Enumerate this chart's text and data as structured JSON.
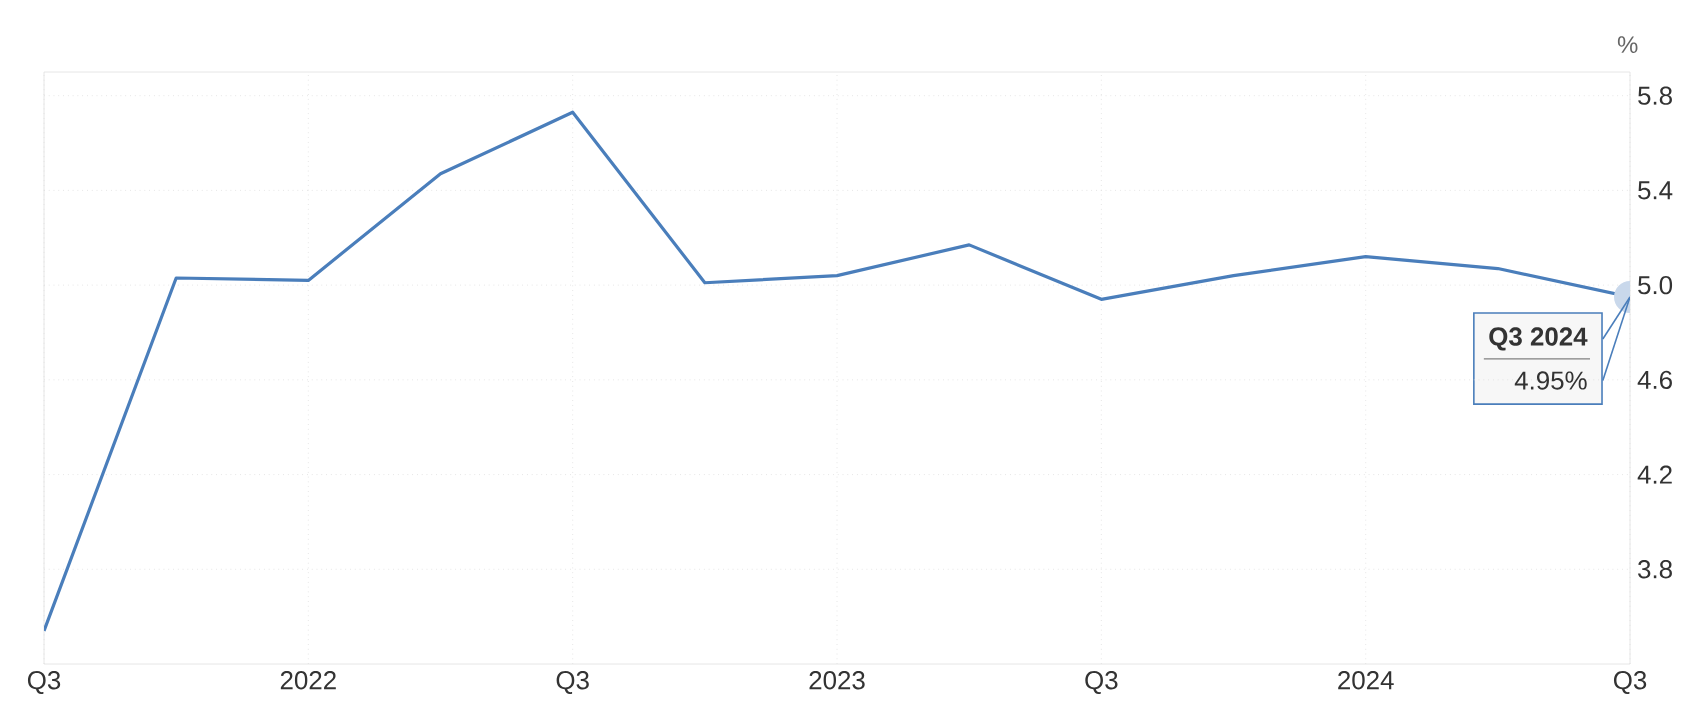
{
  "chart_data": {
    "type": "line",
    "ylabel": "%",
    "x": [
      "2021-07",
      "2021-10",
      "2022-01",
      "2022-04",
      "2022-07",
      "2022-10",
      "2023-01",
      "2023-04",
      "2023-07",
      "2023-10",
      "2024-01",
      "2024-04",
      "2024-07"
    ],
    "values": [
      3.54,
      5.03,
      5.02,
      5.47,
      5.73,
      5.01,
      5.04,
      5.17,
      4.94,
      5.04,
      5.12,
      5.07,
      4.95
    ],
    "color": "#4a7ebb",
    "xlim": [
      "2021-07",
      "2024-07"
    ],
    "xticks": [
      {
        "value": "2021-07",
        "label": "Q3"
      },
      {
        "value": "2022-01",
        "label": "2022"
      },
      {
        "value": "2022-07",
        "label": "Q3"
      },
      {
        "value": "2023-01",
        "label": "2023"
      },
      {
        "value": "2023-07",
        "label": "Q3"
      },
      {
        "value": "2024-01",
        "label": "2024"
      },
      {
        "value": "2024-07",
        "label": "Q3"
      }
    ],
    "ylim": [
      3.4,
      5.9
    ],
    "yticks": [
      3.8,
      4.2,
      4.6,
      {
        "value": 5.0,
        "label": "5.0"
      },
      5.4,
      5.8
    ],
    "grid": true,
    "annotations": [
      {
        "text": "Q3 2024",
        "x": "2024-07",
        "y": 4.95
      },
      {
        "text": "4.95%",
        "x": "2024-07",
        "y": 4.95
      }
    ]
  }
}
